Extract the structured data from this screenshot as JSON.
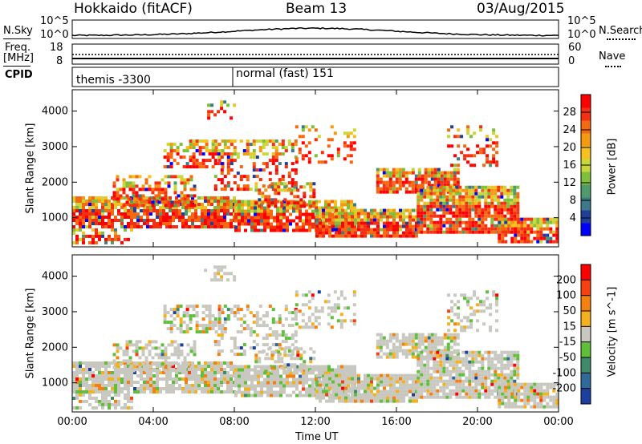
{
  "header": {
    "station": "Hokkaido (fitACF)",
    "beam": "Beam 13",
    "date": "03/Aug/2015"
  },
  "side_labels": {
    "nsky": "N.Sky",
    "nsearch": "N.Search",
    "freq_line1": "Freq.",
    "freq_line2": "[MHz]",
    "nave": "Nave",
    "cpid": "CPID"
  },
  "noise_axis": {
    "top": "10^5",
    "bottom": "10^0"
  },
  "freq_axis": {
    "top": "18",
    "bottom": "8"
  },
  "nave_axis": {
    "top": "60",
    "bottom": "0"
  },
  "cpid_modes": [
    "themis -3300",
    "normal (fast) 151"
  ],
  "chart_data": [
    {
      "type": "heatmap",
      "name": "power",
      "ylabel": "Slant Range [km]",
      "colorbar_label": "Power [dB]",
      "ylim": [
        180,
        4600
      ],
      "yticks": [
        1000,
        2000,
        3000,
        4000
      ],
      "colorbar_ticks": [
        "28",
        "24",
        "20",
        "16",
        "12",
        "8",
        "4"
      ],
      "colors": [
        "#0000ff",
        "#1f3f9a",
        "#3c7a8a",
        "#4f9a6a",
        "#7fbf3a",
        "#c8d83a",
        "#f5c020",
        "#f59a10",
        "#f56a10",
        "#f53010",
        "#ff0000"
      ]
    },
    {
      "type": "heatmap",
      "name": "velocity",
      "ylabel": "Slant Range [km]",
      "colorbar_label": "Velocity [m s^-1]",
      "ylim": [
        180,
        4600
      ],
      "yticks": [
        1000,
        2000,
        3000,
        4000
      ],
      "colorbar_ticks": [
        "200",
        "100",
        "50",
        "15",
        "-15",
        "-50",
        "-100",
        "-200"
      ],
      "colors": [
        "#1f3fa0",
        "#2f6a9a",
        "#3f8a6a",
        "#5fbf3a",
        "#c8c8c0",
        "#f5b020",
        "#f58010",
        "#f54010",
        "#ff0000"
      ]
    }
  ],
  "x_axis": {
    "label": "Time UT",
    "ticks": [
      "00:00",
      "04:00",
      "08:00",
      "12:00",
      "16:00",
      "20:00",
      "00:00"
    ]
  }
}
